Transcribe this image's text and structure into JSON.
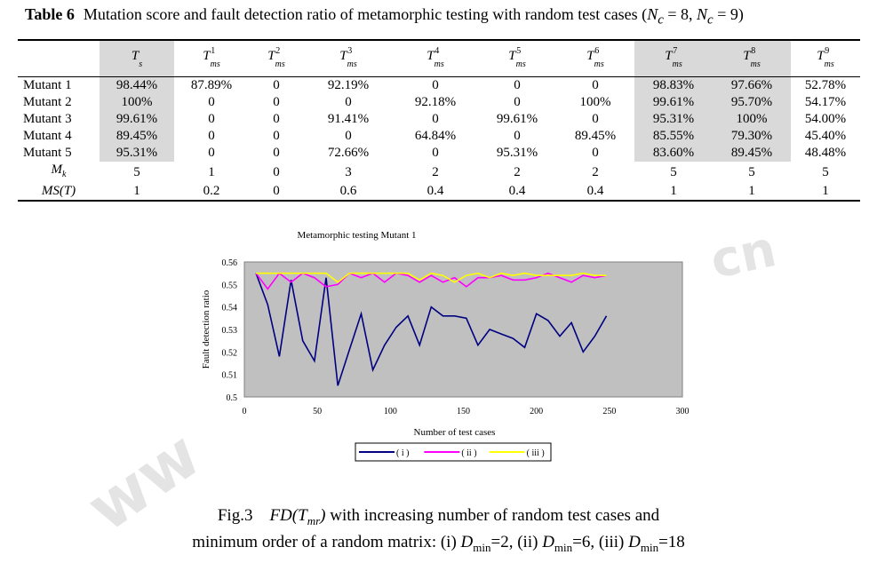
{
  "table": {
    "label": "Table 6",
    "caption_text": "Mutation score and fault detection ratio of metamorphic testing with random test cases (",
    "caption_math": "N",
    "caption_sub": "c",
    "caption_eq1": " = 8, ",
    "caption_eq2": " = 9)",
    "headers": [
      {
        "base": "T",
        "sup": "",
        "sub": "s"
      },
      {
        "base": "T",
        "sup": "1",
        "sub": "ms"
      },
      {
        "base": "T",
        "sup": "2",
        "sub": "ms"
      },
      {
        "base": "T",
        "sup": "3",
        "sub": "ms"
      },
      {
        "base": "T",
        "sup": "4",
        "sub": "ms"
      },
      {
        "base": "T",
        "sup": "5",
        "sub": "ms"
      },
      {
        "base": "T",
        "sup": "6",
        "sub": "ms"
      },
      {
        "base": "T",
        "sup": "7",
        "sub": "ms"
      },
      {
        "base": "T",
        "sup": "8",
        "sub": "ms"
      },
      {
        "base": "T",
        "sup": "9",
        "sub": "ms"
      }
    ],
    "rows": [
      {
        "label": "Mutant 1",
        "cells": [
          "98.44%",
          "87.89%",
          "0",
          "92.19%",
          "0",
          "0",
          "0",
          "98.83%",
          "97.66%",
          "52.78%"
        ]
      },
      {
        "label": "Mutant 2",
        "cells": [
          "100%",
          "0",
          "0",
          "0",
          "92.18%",
          "0",
          "100%",
          "99.61%",
          "95.70%",
          "54.17%"
        ]
      },
      {
        "label": "Mutant 3",
        "cells": [
          "99.61%",
          "0",
          "0",
          "91.41%",
          "0",
          "99.61%",
          "0",
          "95.31%",
          "100%",
          "54.00%"
        ]
      },
      {
        "label": "Mutant 4",
        "cells": [
          "89.45%",
          "0",
          "0",
          "0",
          "64.84%",
          "0",
          "89.45%",
          "85.55%",
          "79.30%",
          "45.40%"
        ]
      },
      {
        "label": "Mutant 5",
        "cells": [
          "95.31%",
          "0",
          "0",
          "72.66%",
          "0",
          "95.31%",
          "0",
          "83.60%",
          "89.45%",
          "48.48%"
        ]
      }
    ],
    "mk": {
      "label_base": "M",
      "label_sub": "k",
      "cells": [
        "5",
        "1",
        "0",
        "3",
        "2",
        "2",
        "2",
        "5",
        "5",
        "5"
      ]
    },
    "ms": {
      "label": "MS(T)",
      "cells": [
        "1",
        "0.2",
        "0",
        "0.6",
        "0.4",
        "0.4",
        "0.4",
        "1",
        "1",
        "1"
      ]
    },
    "shade_color": "#d9d9d9"
  },
  "watermark": {
    "text1": "cn",
    "text2": "ww"
  },
  "chart_data": {
    "type": "line",
    "title": "Metamorphic testing Mutant 1",
    "xlabel": "Number of test cases",
    "ylabel": "Fault detection ratio",
    "xlim": [
      0,
      300
    ],
    "ylim": [
      0.5,
      0.56
    ],
    "xticks": [
      "0",
      "50",
      "100",
      "150",
      "200",
      "250",
      "300"
    ],
    "yticks": [
      "0.5",
      "0.51",
      "0.52",
      "0.53",
      "0.54",
      "0.55",
      "0.56"
    ],
    "plot_bg": "#c0c0c0",
    "legend_position": "bottom",
    "x": [
      8,
      16,
      24,
      32,
      40,
      48,
      56,
      64,
      72,
      80,
      88,
      96,
      104,
      112,
      120,
      128,
      136,
      144,
      152,
      160,
      168,
      176,
      184,
      192,
      200,
      208,
      216,
      224,
      232,
      240,
      248
    ],
    "series": [
      {
        "name": "( i )",
        "color": "#000080",
        "values": [
          0.555,
          0.541,
          0.518,
          0.552,
          0.525,
          0.516,
          0.553,
          0.505,
          0.521,
          0.537,
          0.512,
          0.523,
          0.531,
          0.536,
          0.523,
          0.54,
          0.536,
          0.536,
          0.535,
          0.523,
          0.53,
          0.528,
          0.526,
          0.522,
          0.537,
          0.534,
          0.527,
          0.533,
          0.52,
          0.527,
          0.536
        ]
      },
      {
        "name": "( ii )",
        "color": "#ff00ff",
        "values": [
          0.555,
          0.548,
          0.555,
          0.551,
          0.555,
          0.553,
          0.549,
          0.55,
          0.555,
          0.553,
          0.555,
          0.551,
          0.555,
          0.554,
          0.551,
          0.554,
          0.551,
          0.553,
          0.549,
          0.553,
          0.553,
          0.554,
          0.552,
          0.552,
          0.553,
          0.555,
          0.553,
          0.551,
          0.554,
          0.553,
          0.554
        ]
      },
      {
        "name": "( iii )",
        "color": "#ffff00",
        "values": [
          0.555,
          0.555,
          0.555,
          0.555,
          0.555,
          0.555,
          0.555,
          0.551,
          0.555,
          0.555,
          0.555,
          0.555,
          0.555,
          0.555,
          0.552,
          0.555,
          0.554,
          0.551,
          0.554,
          0.555,
          0.553,
          0.555,
          0.554,
          0.555,
          0.554,
          0.554,
          0.554,
          0.554,
          0.555,
          0.554,
          0.554
        ]
      }
    ]
  },
  "figure": {
    "line1_prefix": "Fig.3    ",
    "line1_math": "FD(T",
    "line1_math_sub": "mr",
    "line1_math_close": ")",
    "line1_suffix": " with increasing number of random test cases and",
    "line2_prefix": "minimum order of a random matrix: (i) ",
    "d_base": "D",
    "d_sub": "min",
    "v1": "=2, (ii) ",
    "v2": "=6, (iii) ",
    "v3": "=18"
  }
}
